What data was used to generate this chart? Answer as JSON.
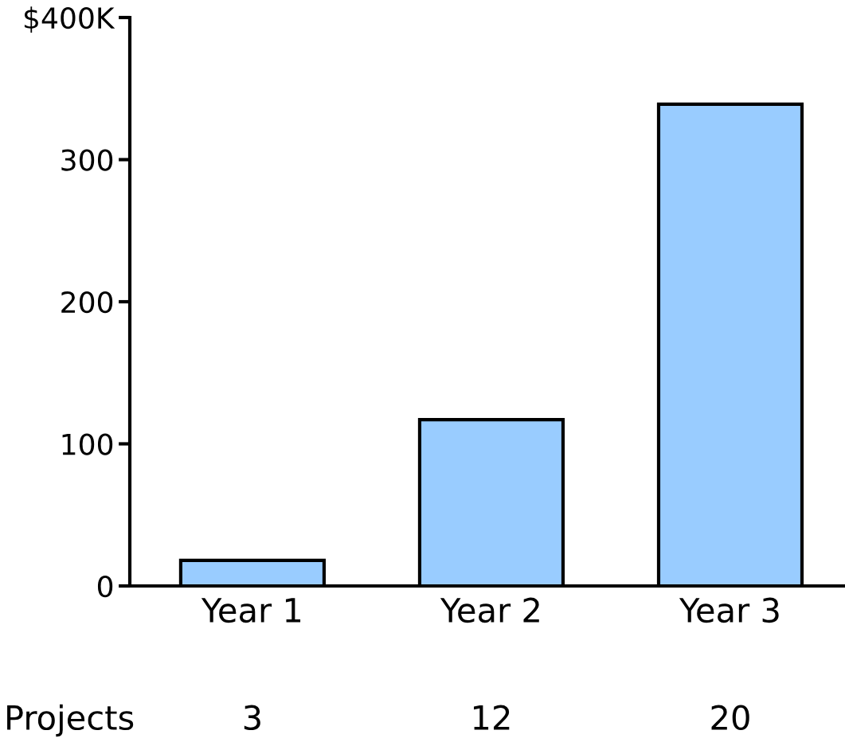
{
  "chart_data": {
    "type": "bar",
    "categories": [
      "Year 1",
      "Year 2",
      "Year 3"
    ],
    "values": [
      18,
      117,
      339
    ],
    "color": "#99ccff",
    "ylim": [
      0,
      400
    ],
    "yticks": [
      0,
      100,
      200,
      300,
      {
        "value": 400,
        "label": "$400K"
      }
    ],
    "grid": false,
    "annotations": [
      "Projects",
      "3",
      "12",
      "20"
    ]
  }
}
